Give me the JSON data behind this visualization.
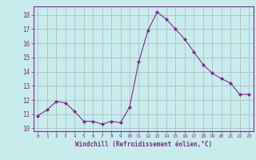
{
  "x": [
    0,
    1,
    2,
    3,
    4,
    5,
    6,
    7,
    8,
    9,
    10,
    11,
    12,
    13,
    14,
    15,
    16,
    17,
    18,
    19,
    20,
    21,
    22,
    23
  ],
  "y": [
    10.9,
    11.3,
    11.9,
    11.8,
    11.2,
    10.5,
    10.5,
    10.3,
    10.5,
    10.4,
    11.5,
    14.7,
    16.9,
    18.2,
    17.7,
    17.0,
    16.3,
    15.4,
    14.5,
    13.9,
    13.5,
    13.2,
    12.4,
    12.4
  ],
  "line_color": "#7b2d8b",
  "marker": "D",
  "marker_size": 2.2,
  "bg_color": "#c8ecec",
  "grid_color": "#b0b0c8",
  "xlabel": "Windchill (Refroidissement éolien,°C)",
  "xlabel_color": "#7b2d8b",
  "tick_color": "#7b2d8b",
  "ylim": [
    9.8,
    18.6
  ],
  "xlim": [
    -0.5,
    23.5
  ],
  "yticks": [
    10,
    11,
    12,
    13,
    14,
    15,
    16,
    17,
    18
  ],
  "xticks": [
    0,
    1,
    2,
    3,
    4,
    5,
    6,
    7,
    8,
    9,
    10,
    11,
    12,
    13,
    14,
    15,
    16,
    17,
    18,
    19,
    20,
    21,
    22,
    23
  ]
}
